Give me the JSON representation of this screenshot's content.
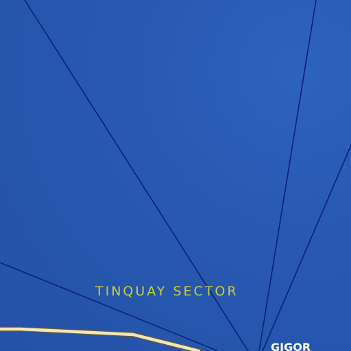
{
  "map": {
    "labels": {
      "sector": "TINQUAY SECTOR",
      "place": "GIGOR"
    },
    "colors": {
      "water": "#2758b0",
      "boundary": "#0d1f7a",
      "road": "#f0e6c0",
      "sector_label": "#c7cf3a",
      "place_label": "#ffffff"
    }
  }
}
